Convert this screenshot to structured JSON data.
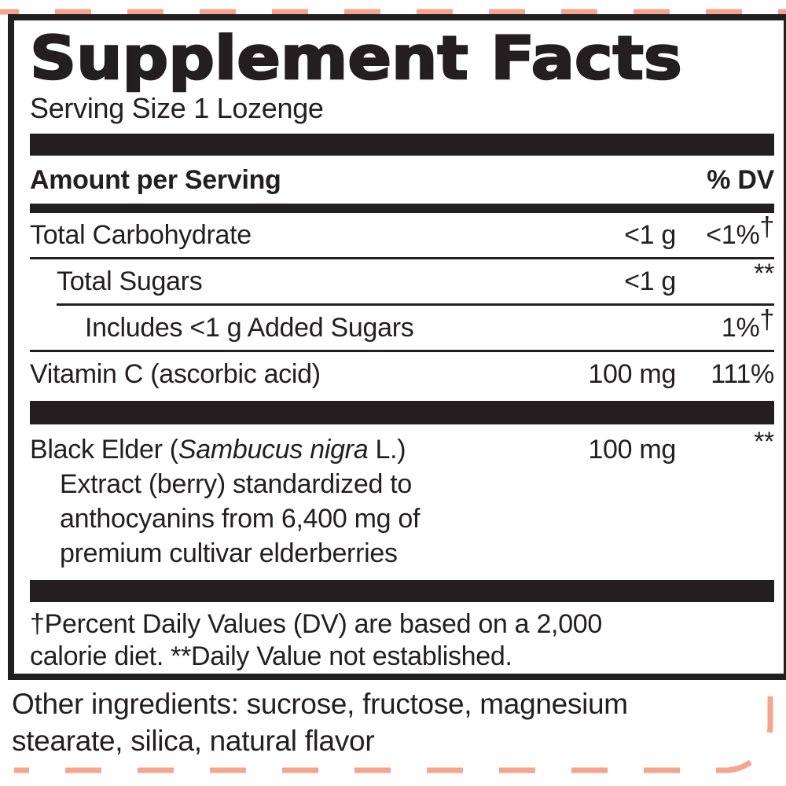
{
  "panel": {
    "title": "Supplement Facts",
    "serving_size": "Serving Size 1 Lozenge",
    "columns": {
      "amount_header": "Amount per Serving",
      "dv_header": "% DV"
    },
    "rows": [
      {
        "name": "Total Carbohydrate",
        "amount": "<1 g",
        "dv": "<1%",
        "dv_sup": "†",
        "indent": 0,
        "divider_above": "none"
      },
      {
        "name": "Total Sugars",
        "amount": "<1 g",
        "dv": "",
        "dv_sup": "**",
        "indent": 1,
        "divider_above": "full"
      },
      {
        "name": "Includes <1 g Added Sugars",
        "amount": "",
        "dv": "1%",
        "dv_sup": "†",
        "indent": 2,
        "divider_above": "indent"
      },
      {
        "name": "Vitamin C (ascorbic acid)",
        "amount": "100 mg",
        "dv": "111%",
        "dv_sup": "",
        "indent": 0,
        "divider_above": "full"
      }
    ],
    "botanical": {
      "name_prefix": "Black Elder (",
      "name_italic": "Sambucus nigra",
      "name_suffix": " L.)",
      "amount": "100 mg",
      "dv_sup": "**",
      "continuation_lines": [
        "Extract (berry) standardized to",
        "anthocyanins from 6,400 mg of",
        "premium cultivar elderberries"
      ]
    },
    "footnote_lines": [
      "†Percent Daily Values (DV) are based on a 2,000",
      "calorie diet. **Daily Value not established."
    ]
  },
  "outside": {
    "other_ingredients_lines": [
      "Other ingredients: sucrose, fructose, magnesium",
      "stearate, silica, natural flavor"
    ]
  },
  "colors": {
    "ink": "#231f20",
    "diecut_dash": "#f5a58f",
    "background": "#ffffff"
  }
}
